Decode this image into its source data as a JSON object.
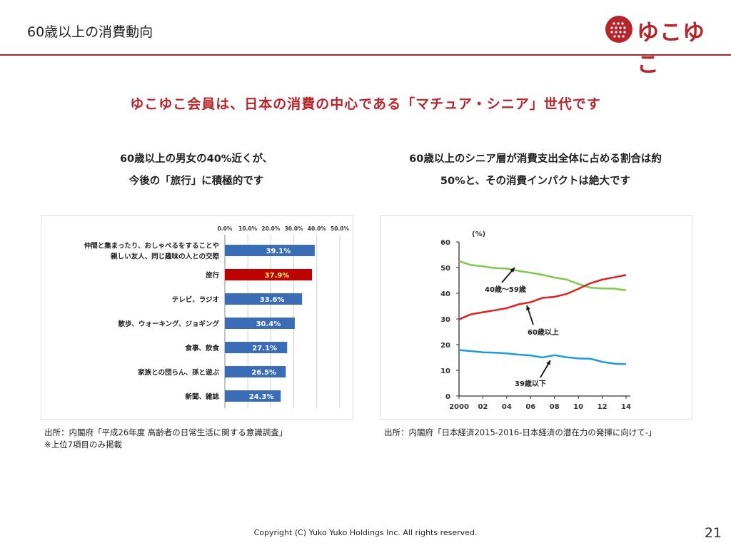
{
  "header": {
    "title": "60歳以上の消費動向",
    "logo_text": "ゆこゆこ",
    "brand_color": "#b5252b"
  },
  "headline": "ゆこゆこ会員は、日本の消費の中心である「マチュア・シニア」世代です",
  "left": {
    "subtitle_line1": "60歳以上の男女の40%近くが、",
    "subtitle_line2": "今後の「旅行」に積極的です",
    "source_line1": "出所：内閣府「平成26年度 高齢者の日常生活に関する意識調査」",
    "source_line2": "※上位7項目のみ掲載"
  },
  "right": {
    "subtitle_line1": "60歳以上のシニア層が消費支出全体に占める割合は約",
    "subtitle_line2": "50%と、その消費インパクトは絶大です",
    "source_line1": "出所：内閣府「日本経済2015-2016-日本経済の潜在力の発揮に向けて-」"
  },
  "footer": {
    "copyright": "Copyright (C) Yuko Yuko Holdings Inc. All rights reserved.",
    "page_number": "21"
  },
  "chart_data": [
    {
      "type": "bar",
      "orientation": "horizontal",
      "categories": [
        [
          "仲間と集まったり、おしゃべるをすることや",
          "親しい友人、同じ趣味の人との交際"
        ],
        [
          "旅行"
        ],
        [
          "テレビ、ラジオ"
        ],
        [
          "散歩、ウォーキング、ジョギング"
        ],
        [
          "食事、飲食"
        ],
        [
          "家族との団らん、孫と遊ぶ"
        ],
        [
          "新聞、雑誌"
        ]
      ],
      "values": [
        39.1,
        37.9,
        33.6,
        30.4,
        27.1,
        26.5,
        24.3
      ],
      "value_labels": [
        "39.1%",
        "37.9%",
        "33.6%",
        "30.4%",
        "27.1%",
        "26.5%",
        "24.3%"
      ],
      "xlim": [
        0,
        50
      ],
      "x_ticks": [
        "0.0%",
        "10.0%",
        "20.0%",
        "30.0%",
        "40.0%",
        "50.0%"
      ],
      "grid": true,
      "bar_color": "#3a6db5",
      "highlight_index": 1,
      "highlight_color": "#c00000",
      "highlight_label_color": "#ffff66"
    },
    {
      "type": "line",
      "y_unit_label": "(%)",
      "x": [
        2000,
        2001,
        2002,
        2003,
        2004,
        2005,
        2006,
        2007,
        2008,
        2009,
        2010,
        2011,
        2012,
        2013,
        2014
      ],
      "x_ticks": [
        "2000",
        "02",
        "04",
        "06",
        "08",
        "10",
        "12",
        "14"
      ],
      "x_tick_values": [
        2000,
        2002,
        2004,
        2006,
        2008,
        2010,
        2012,
        2014
      ],
      "ylim": [
        0,
        60
      ],
      "y_ticks": [
        0,
        10,
        20,
        30,
        40,
        50,
        60
      ],
      "grid": false,
      "series": [
        {
          "name": "40歳〜59歳",
          "color": "#7ec850",
          "values": [
            52.5,
            51,
            50.5,
            49.8,
            49.6,
            48.7,
            48,
            47.2,
            46.1,
            45.4,
            43.6,
            42.2,
            41.9,
            41.8,
            41.2
          ]
        },
        {
          "name": "60歳以上",
          "color": "#e02020",
          "values": [
            29.8,
            31.8,
            32.6,
            33.4,
            34.2,
            35.7,
            36.5,
            38.2,
            38.6,
            39.7,
            41.7,
            43.9,
            45.3,
            46.2,
            47.1
          ]
        },
        {
          "name": "39歳以下",
          "color": "#1e9be0",
          "values": [
            17.9,
            17.5,
            17,
            16.9,
            16.6,
            16.1,
            15.8,
            15,
            15.9,
            15.1,
            14.6,
            14.5,
            13.3,
            12.6,
            12.4
          ]
        }
      ]
    }
  ]
}
